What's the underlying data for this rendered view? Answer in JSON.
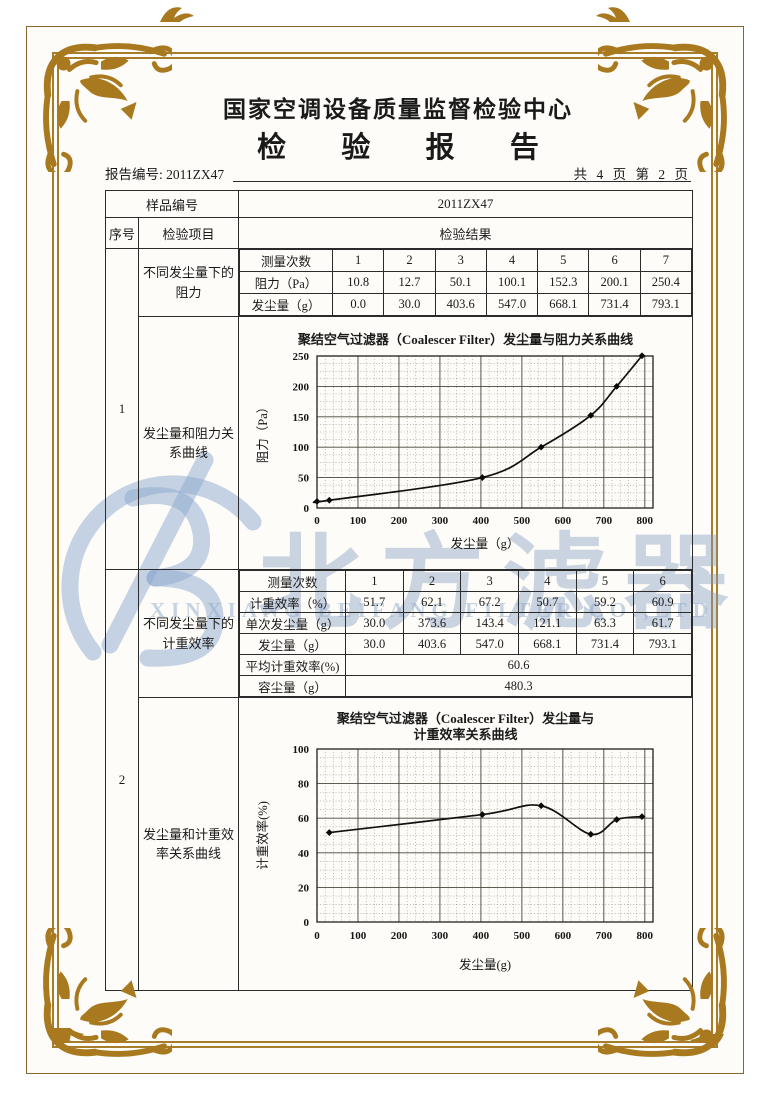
{
  "header": {
    "center_title": "国家空调设备质量监督检验中心",
    "report_title": "检 验 报 告",
    "report_no_label": "报告编号:",
    "report_no": "2011ZX47",
    "page_info": "共 4 页 第 2 页"
  },
  "watermark": {
    "cn": "北方滤器",
    "en": "XINXIANG BEIFANG FILTER CO.,LTD",
    "color": "#8ea8ca"
  },
  "table": {
    "sample_label": "样品编号",
    "sample_value": "2011ZX47",
    "col_seq": "序号",
    "col_item": "检验项目",
    "col_result": "检验结果"
  },
  "sections": [
    {
      "seq": "1",
      "data_item": "不同发尘量下的阻力",
      "curve_item": "发尘量和阻力关系曲线",
      "data_table": {
        "header_label": "测量次数",
        "headers": [
          "1",
          "2",
          "3",
          "4",
          "5",
          "6",
          "7"
        ],
        "rows": [
          {
            "label": "阻力（Pa）",
            "values": [
              "10.8",
              "12.7",
              "50.1",
              "100.1",
              "152.3",
              "200.1",
              "250.4"
            ]
          },
          {
            "label": "发尘量（g）",
            "values": [
              "0.0",
              "30.0",
              "403.6",
              "547.0",
              "668.1",
              "731.4",
              "793.1"
            ]
          }
        ],
        "summary_rows": []
      }
    },
    {
      "seq": "2",
      "data_item": "不同发尘量下的计重效率",
      "curve_item": "发尘量和计重效率关系曲线",
      "data_table": {
        "header_label": "测量次数",
        "headers": [
          "1",
          "2",
          "3",
          "4",
          "5",
          "6"
        ],
        "rows": [
          {
            "label": "计重效率（%）",
            "values": [
              "51.7",
              "62.1",
              "67.2",
              "50.7",
              "59.2",
              "60.9"
            ]
          },
          {
            "label": "单次发尘量（g）",
            "values": [
              "30.0",
              "373.6",
              "143.4",
              "121.1",
              "63.3",
              "61.7"
            ]
          },
          {
            "label": "发尘量（g）",
            "values": [
              "30.0",
              "403.6",
              "547.0",
              "668.1",
              "731.4",
              "793.1"
            ]
          }
        ],
        "summary_rows": [
          {
            "label": "平均计重效率(%)",
            "value": "60.6"
          },
          {
            "label": "容尘量（g）",
            "value": "480.3"
          }
        ]
      }
    }
  ],
  "chart_data": [
    {
      "type": "line",
      "title": "聚结空气过滤器（Coalescer Filter）发尘量与阻力关系曲线",
      "title_lines": [
        "聚结空气过滤器（Coalescer Filter）发尘量与阻力关系曲线"
      ],
      "xlabel": "发尘量（g）",
      "ylabel": "阻力（Pa）",
      "x": [
        0,
        30,
        403.6,
        547,
        668.1,
        731.4,
        793.1
      ],
      "y": [
        10.8,
        12.7,
        50.1,
        100.1,
        152.3,
        200.1,
        250.4
      ],
      "xlim": [
        0,
        820
      ],
      "ylim": [
        0,
        250
      ],
      "xticks": [
        0,
        100,
        200,
        300,
        400,
        500,
        600,
        700,
        800
      ],
      "yticks": [
        0,
        50,
        100,
        150,
        200,
        250
      ],
      "grid": {
        "x_minor": 20,
        "x_major": 100,
        "y_minor": 12.5,
        "y_major": 50
      },
      "marker": "diamond",
      "legend": "none"
    },
    {
      "type": "line",
      "title": "聚结空气过滤器（Coalescer Filter）发尘量与计重效率关系曲线",
      "title_lines": [
        "聚结空气过滤器（Coalescer Filter）发尘量与",
        "计重效率关系曲线"
      ],
      "xlabel": "发尘量(g)",
      "ylabel": "计重效率(%)",
      "x": [
        30,
        403.6,
        547,
        668.1,
        731.4,
        793.1
      ],
      "y": [
        51.7,
        62.1,
        67.2,
        50.7,
        59.2,
        60.9
      ],
      "xlim": [
        0,
        820
      ],
      "ylim": [
        0,
        100
      ],
      "xticks": [
        0,
        100,
        200,
        300,
        400,
        500,
        600,
        700,
        800
      ],
      "yticks": [
        0,
        20,
        40,
        60,
        80,
        100
      ],
      "grid": {
        "x_minor": 20,
        "x_major": 100,
        "y_minor": 5,
        "y_major": 20
      },
      "marker": "diamond",
      "legend": "none"
    }
  ]
}
